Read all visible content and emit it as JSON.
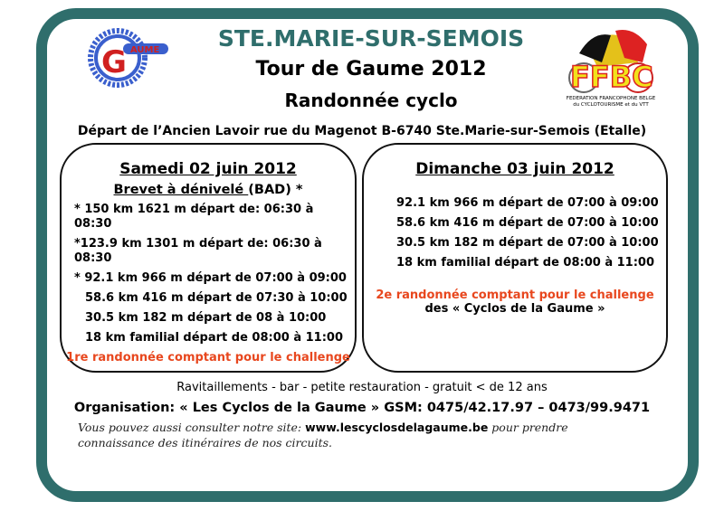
{
  "header": {
    "town": "STE.MARIE-SUR-SEMOIS",
    "event": "Tour de Gaume 2012",
    "type": "Randonnée cyclo"
  },
  "logos": {
    "left": "Cyclo Gaume",
    "right_main": "FFBC",
    "right_caption1": "FEDERATION FRANCOPHONE BELGE",
    "right_caption2": "du CYCLOTOURISME et du VTT"
  },
  "departure": "Départ de l’Ancien Lavoir rue du Magenot  B-6740 Ste.Marie-sur-Semois (Etalle)",
  "saturday": {
    "title": "Samedi 02 juin 2012",
    "subtitle_underlined": "Brevet à dénivelé ",
    "subtitle_rest": "(BAD) *",
    "routes": [
      "* 150 km 1621 m  départ de: 06:30 à 08:30",
      "*123.9 km 1301 m départ de: 06:30 à 08:30",
      "* 92.1 km 966 m départ de 07:00 à 09:00",
      "58.6 km 416 m départ de 07:30 à 10:00",
      "30.5 km 182 m départ de 08 à 10:00",
      "18 km familial départ de 08:00 à 11:00"
    ],
    "challenge": "1re randonnée comptant pour le challenge"
  },
  "sunday": {
    "title": "Dimanche 03 juin 2012",
    "routes": [
      "92.1 km 966 m départ de 07:00 à 09:00",
      "58.6 km 416 m départ de 07:00 à 10:00",
      "30.5 km 182 m départ de 07:00 à 10:00",
      "18 km familial départ de 08:00 à 11:00"
    ],
    "challenge": "2e randonnée comptant pour le challenge",
    "challenge2": "des « Cyclos de la Gaume »"
  },
  "services": "Ravitaillements - bar - petite restauration - gratuit < de 12 ans",
  "organisation": "Organisation: « Les Cyclos de la Gaume » GSM: 0475/42.17.97 – 0473/99.9471",
  "site": {
    "before": "Vous pouvez aussi consulter notre site: ",
    "url": "www.lescyclosdelagaume.be",
    "after": " pour prendre connaissance des itinéraires de nos circuits."
  },
  "colors": {
    "frame": "#2f6e6c",
    "accent_red": "#e8471e",
    "logo_blue": "#3a5fcd"
  }
}
